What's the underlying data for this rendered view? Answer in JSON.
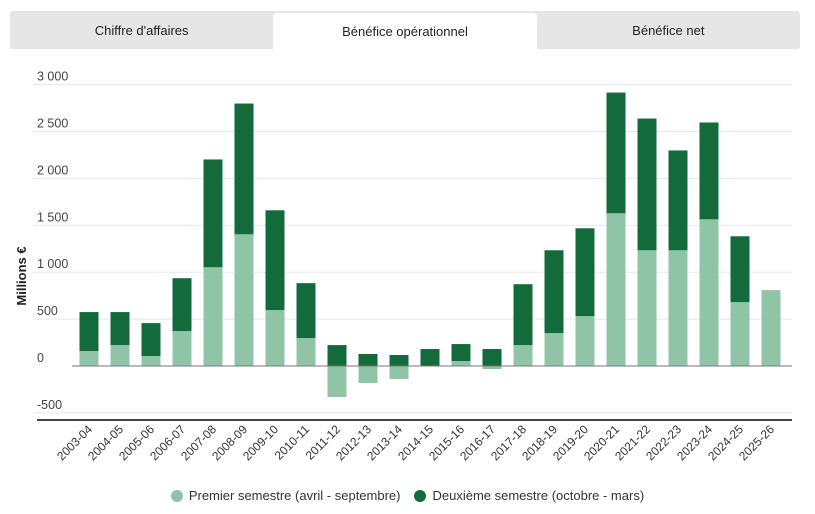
{
  "tabs": [
    {
      "label": "Chiffre d'affaires",
      "active": false
    },
    {
      "label": "Bénéfice opérationnel",
      "active": true
    },
    {
      "label": "Bénéfice net",
      "active": false
    }
  ],
  "colors": {
    "first": "#90c4a7",
    "second": "#136a3b"
  },
  "chart_data": {
    "type": "bar",
    "stacked": true,
    "title": "",
    "xlabel": "",
    "ylabel": "Millions €",
    "ylim": [
      -500,
      3000
    ],
    "yticks": [
      -500,
      0,
      500,
      1000,
      1500,
      2000,
      2500,
      3000
    ],
    "ytick_labels": [
      "-500",
      "0",
      "500",
      "1 000",
      "1 500",
      "2 000",
      "2 500",
      "3 000"
    ],
    "grid": true,
    "legend_position": "bottom",
    "categories": [
      "2003-04",
      "2004-05",
      "2005-06",
      "2006-07",
      "2007-08",
      "2008-09",
      "2009-10",
      "2010-11",
      "2011-12",
      "2012-13",
      "2013-14",
      "2014-15",
      "2015-16",
      "2016-17",
      "2017-18",
      "2018-19",
      "2019-20",
      "2020-21",
      "2021-22",
      "2022-23",
      "2023-24",
      "2024-25",
      "2025-26"
    ],
    "series": [
      {
        "name": "Premier semestre (avril - septembre)",
        "values": [
          160,
          223,
          106,
          372,
          1053,
          1404,
          596,
          298,
          -330,
          -181,
          -138,
          5,
          53,
          -32,
          223,
          351,
          532,
          1628,
          1234,
          1234,
          1564,
          681,
          809
        ]
      },
      {
        "name": "Deuxième semestre (octobre - mars)",
        "values": [
          415,
          352,
          351,
          564,
          1149,
          1394,
          1064,
          585,
          223,
          128,
          117,
          176,
          181,
          181,
          649,
          883,
          936,
          1287,
          1404,
          1064,
          1032,
          702,
          null
        ]
      }
    ]
  }
}
